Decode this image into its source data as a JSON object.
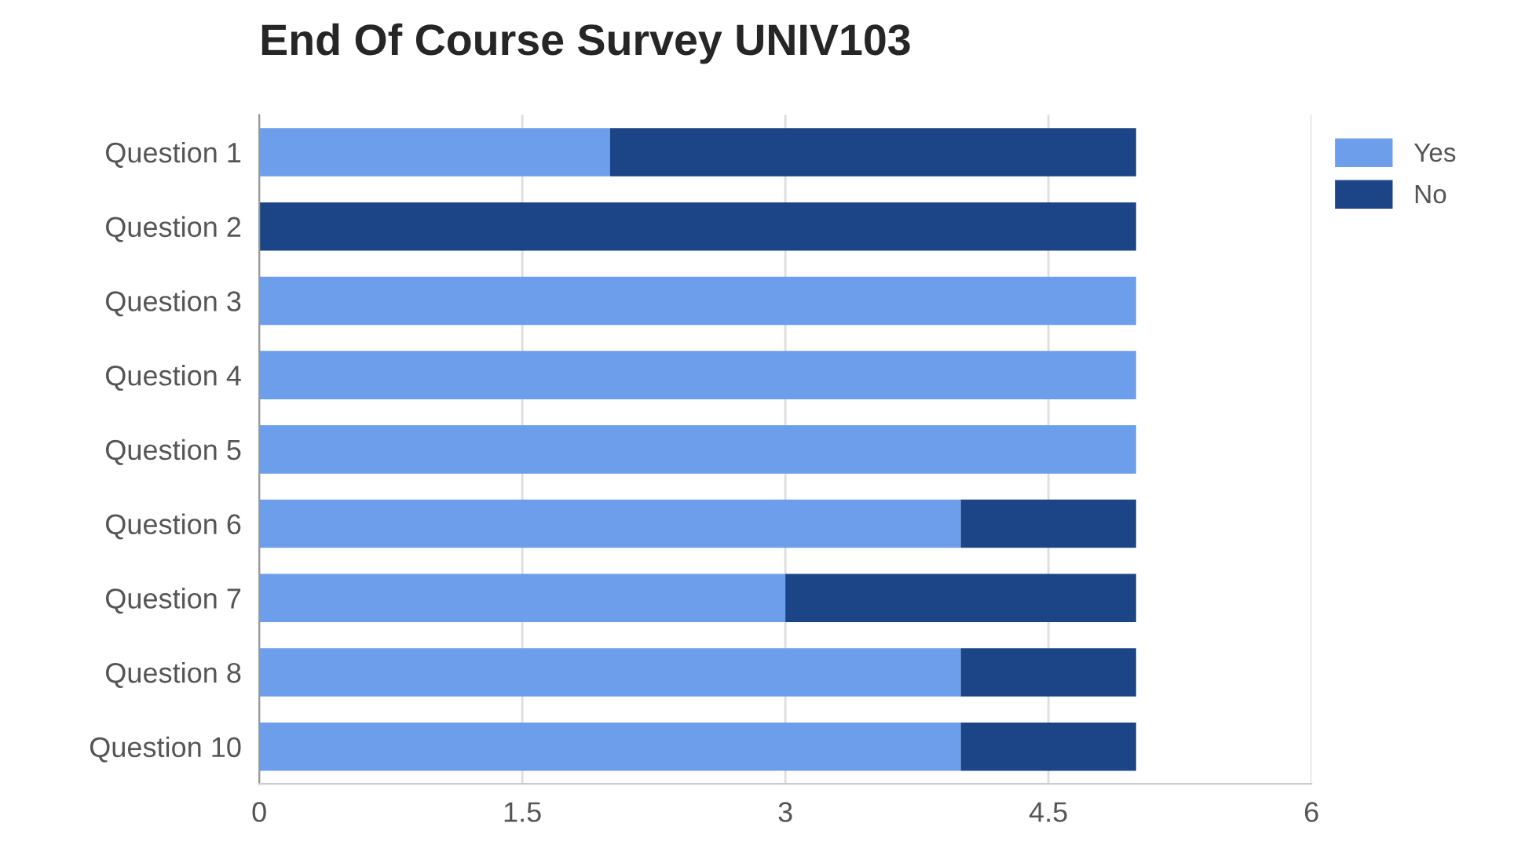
{
  "chart_data": {
    "type": "bar",
    "orientation": "horizontal",
    "stacked": true,
    "title": "End Of Course Survey UNIV103",
    "categories": [
      "Question 1",
      "Question 2",
      "Question 3",
      "Question 4",
      "Question 5",
      "Question 6",
      "Question 7",
      "Question 8",
      "Question 10"
    ],
    "series": [
      {
        "name": "Yes",
        "color": "#6d9eeb",
        "values": [
          2,
          0,
          5,
          5,
          5,
          4,
          3,
          4,
          4
        ]
      },
      {
        "name": "No",
        "color": "#1c4587",
        "values": [
          3,
          5,
          0,
          0,
          0,
          1,
          2,
          1,
          1
        ]
      }
    ],
    "xlim": [
      0,
      6
    ],
    "xticks": [
      0,
      1.5,
      3,
      4.5,
      6
    ],
    "grid": "x",
    "legend": "top right"
  }
}
